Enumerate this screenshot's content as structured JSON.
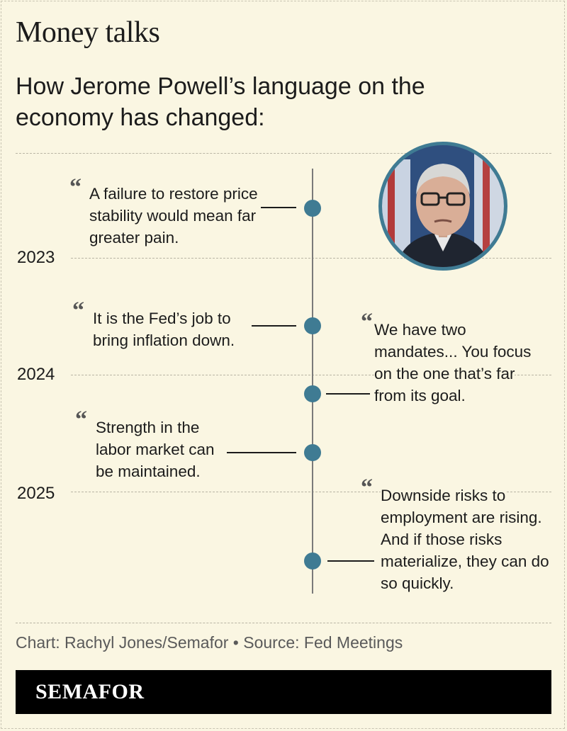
{
  "header": {
    "title": "Money talks",
    "subtitle": "How Jerome Powell’s language on the economy has changed:"
  },
  "timeline": {
    "years": [
      "2023",
      "2024",
      "2025"
    ],
    "quotes": [
      {
        "text": "A failure to restore price stability would mean far greater pain.",
        "side": "left"
      },
      {
        "text": "It is the Fed’s job to bring inflation down.",
        "side": "left"
      },
      {
        "text": "We have two mandates... You focus on the one that’s far from its goal.",
        "side": "right"
      },
      {
        "text": "Strength in the labor market can be maintained.",
        "side": "left"
      },
      {
        "text": "Downside risks to employment are rising. And if those risks materialize, they can do so quickly.",
        "side": "right"
      }
    ],
    "quote_mark": "“",
    "colors": {
      "dot": "#3f7b93",
      "background": "#faf6e2",
      "photo_ring": "#3f7b93"
    }
  },
  "photo": {
    "subject": "portrait-photo"
  },
  "footer": {
    "credit": "Chart: Rachyl Jones/Semafor • Source: Fed Meetings",
    "logo": "SEMAFOR"
  }
}
